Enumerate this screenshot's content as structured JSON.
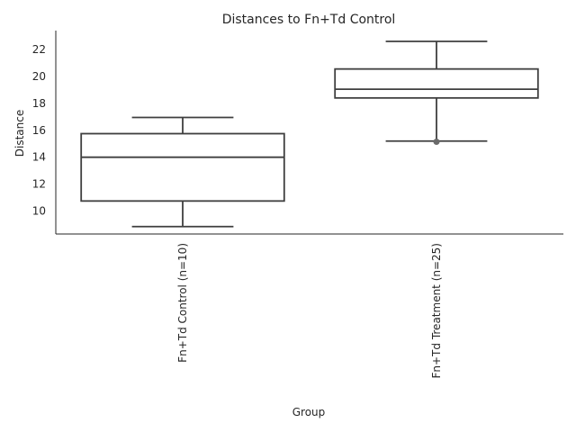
{
  "chart_data": {
    "type": "box",
    "title": "Distances to Fn+Td Control",
    "xlabel": "Group",
    "ylabel": "Distance",
    "ylim": [
      8.3,
      23.4
    ],
    "yticks": [
      10,
      12,
      14,
      16,
      18,
      20,
      22
    ],
    "grid": false,
    "categories": [
      "Fn+Td Control (n=10)",
      "Fn+Td Treatment (n=25)"
    ],
    "boxes": [
      {
        "whisker_low": 8.85,
        "q1": 10.75,
        "median": 14.0,
        "q3": 15.75,
        "whisker_high": 16.95,
        "outliers": []
      },
      {
        "whisker_low": 15.2,
        "q1": 18.4,
        "median": 19.05,
        "q3": 20.55,
        "whisker_high": 22.6,
        "outliers": [
          15.15
        ]
      }
    ]
  }
}
